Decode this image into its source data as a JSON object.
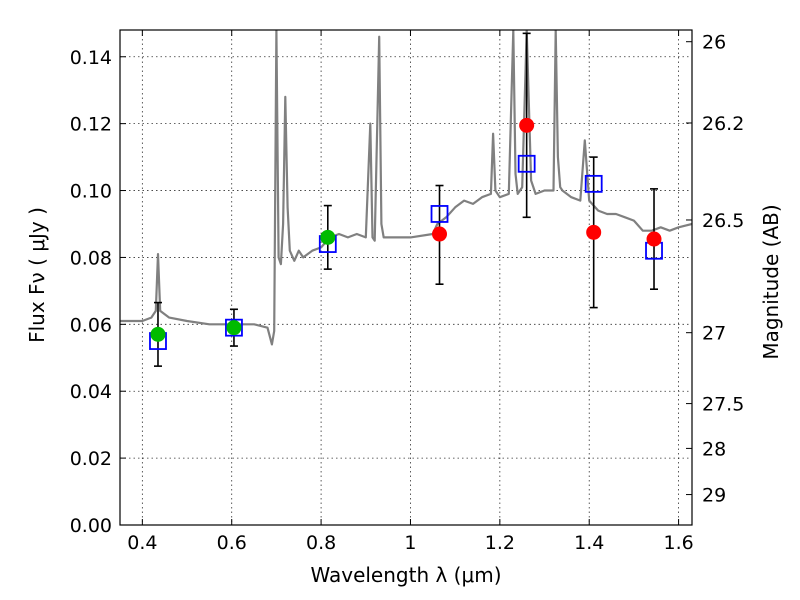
{
  "chart_data": {
    "type": "scatter",
    "title": "",
    "xlabel": "Wavelength  λ (μm)",
    "ylabel": "Flux  Fν  ( μJy )",
    "y2label": "Magnitude (AB)",
    "xlim": [
      0.35,
      1.63
    ],
    "ylim": [
      0.0,
      0.148
    ],
    "grid": true,
    "x_ticks": [
      {
        "value": 0.4,
        "label": "0.4"
      },
      {
        "value": 0.6,
        "label": "0.6"
      },
      {
        "value": 0.8,
        "label": "0.8"
      },
      {
        "value": 1.0,
        "label": "1"
      },
      {
        "value": 1.2,
        "label": "1.2"
      },
      {
        "value": 1.4,
        "label": "1.4"
      },
      {
        "value": 1.6,
        "label": "1.6"
      }
    ],
    "y_ticks": [
      {
        "value": 0.0,
        "label": "0.00"
      },
      {
        "value": 0.02,
        "label": "0.02"
      },
      {
        "value": 0.04,
        "label": "0.04"
      },
      {
        "value": 0.06,
        "label": "0.06"
      },
      {
        "value": 0.08,
        "label": "0.08"
      },
      {
        "value": 0.1,
        "label": "0.10"
      },
      {
        "value": 0.12,
        "label": "0.12"
      },
      {
        "value": 0.14,
        "label": "0.14"
      }
    ],
    "y2_ticks": [
      {
        "label": "26",
        "flux": 0.1445
      },
      {
        "label": "26.2",
        "flux": 0.1202
      },
      {
        "label": "26.5",
        "flux": 0.0912
      },
      {
        "label": "27",
        "flux": 0.0575
      },
      {
        "label": "27.5",
        "flux": 0.0363
      },
      {
        "label": "28",
        "flux": 0.0229
      },
      {
        "label": "29",
        "flux": 0.0091
      }
    ],
    "colors": {
      "spectrum": "#808080",
      "optical_points": "#00bb00",
      "nir_points": "#ff0000",
      "model_squares": "#0000ff",
      "error_bars": "#000000"
    },
    "series": [
      {
        "kind": "line",
        "x": [
          0.35,
          0.38,
          0.4,
          0.42,
          0.43,
          0.435,
          0.44,
          0.46,
          0.5,
          0.55,
          0.58,
          0.6,
          0.62,
          0.65,
          0.68,
          0.69,
          0.695,
          0.7,
          0.705,
          0.71,
          0.715,
          0.72,
          0.725,
          0.73,
          0.74,
          0.75,
          0.76,
          0.78,
          0.8,
          0.82,
          0.84,
          0.86,
          0.88,
          0.9,
          0.91,
          0.915,
          0.92,
          0.93,
          0.935,
          0.94,
          0.95,
          1.0,
          1.05,
          1.06,
          1.08,
          1.1,
          1.12,
          1.14,
          1.16,
          1.18,
          1.185,
          1.19,
          1.2,
          1.22,
          1.23,
          1.235,
          1.24,
          1.25,
          1.26,
          1.27,
          1.28,
          1.3,
          1.32,
          1.325,
          1.33,
          1.335,
          1.34,
          1.36,
          1.38,
          1.39,
          1.4,
          1.42,
          1.44,
          1.46,
          1.48,
          1.5,
          1.52,
          1.54,
          1.56,
          1.58,
          1.6,
          1.63
        ],
        "y": [
          0.061,
          0.061,
          0.061,
          0.062,
          0.064,
          0.081,
          0.064,
          0.062,
          0.061,
          0.06,
          0.06,
          0.06,
          0.06,
          0.06,
          0.059,
          0.054,
          0.058,
          0.148,
          0.08,
          0.078,
          0.09,
          0.128,
          0.095,
          0.082,
          0.079,
          0.082,
          0.08,
          0.082,
          0.083,
          0.086,
          0.087,
          0.086,
          0.087,
          0.086,
          0.12,
          0.086,
          0.085,
          0.146,
          0.09,
          0.086,
          0.086,
          0.086,
          0.087,
          0.09,
          0.092,
          0.095,
          0.097,
          0.096,
          0.098,
          0.099,
          0.117,
          0.1,
          0.098,
          0.099,
          0.148,
          0.105,
          0.099,
          0.101,
          0.148,
          0.103,
          0.099,
          0.1,
          0.1,
          0.148,
          0.11,
          0.101,
          0.1,
          0.098,
          0.097,
          0.115,
          0.097,
          0.094,
          0.093,
          0.093,
          0.092,
          0.091,
          0.088,
          0.088,
          0.089,
          0.088,
          0.089,
          0.09
        ]
      },
      {
        "kind": "points",
        "marker": "open-square",
        "x": [
          0.435,
          0.605,
          0.815,
          1.065,
          1.26,
          1.41,
          1.545
        ],
        "y": [
          0.055,
          0.059,
          0.084,
          0.093,
          0.108,
          0.102,
          0.082
        ]
      },
      {
        "kind": "points",
        "marker": "filled-circle",
        "x": [
          0.435,
          0.605,
          0.815
        ],
        "y": [
          0.057,
          0.059,
          0.086
        ],
        "yerr": [
          0.0095,
          0.0055,
          0.0095
        ]
      },
      {
        "kind": "points",
        "marker": "filled-circle",
        "x": [
          1.065,
          1.26,
          1.41,
          1.545
        ],
        "y": [
          0.087,
          0.1195,
          0.0875,
          0.0855
        ],
        "yerr_low": [
          0.015,
          0.0275,
          0.0225,
          0.015
        ],
        "yerr_high": [
          0.0145,
          0.0275,
          0.0225,
          0.015
        ]
      }
    ]
  }
}
